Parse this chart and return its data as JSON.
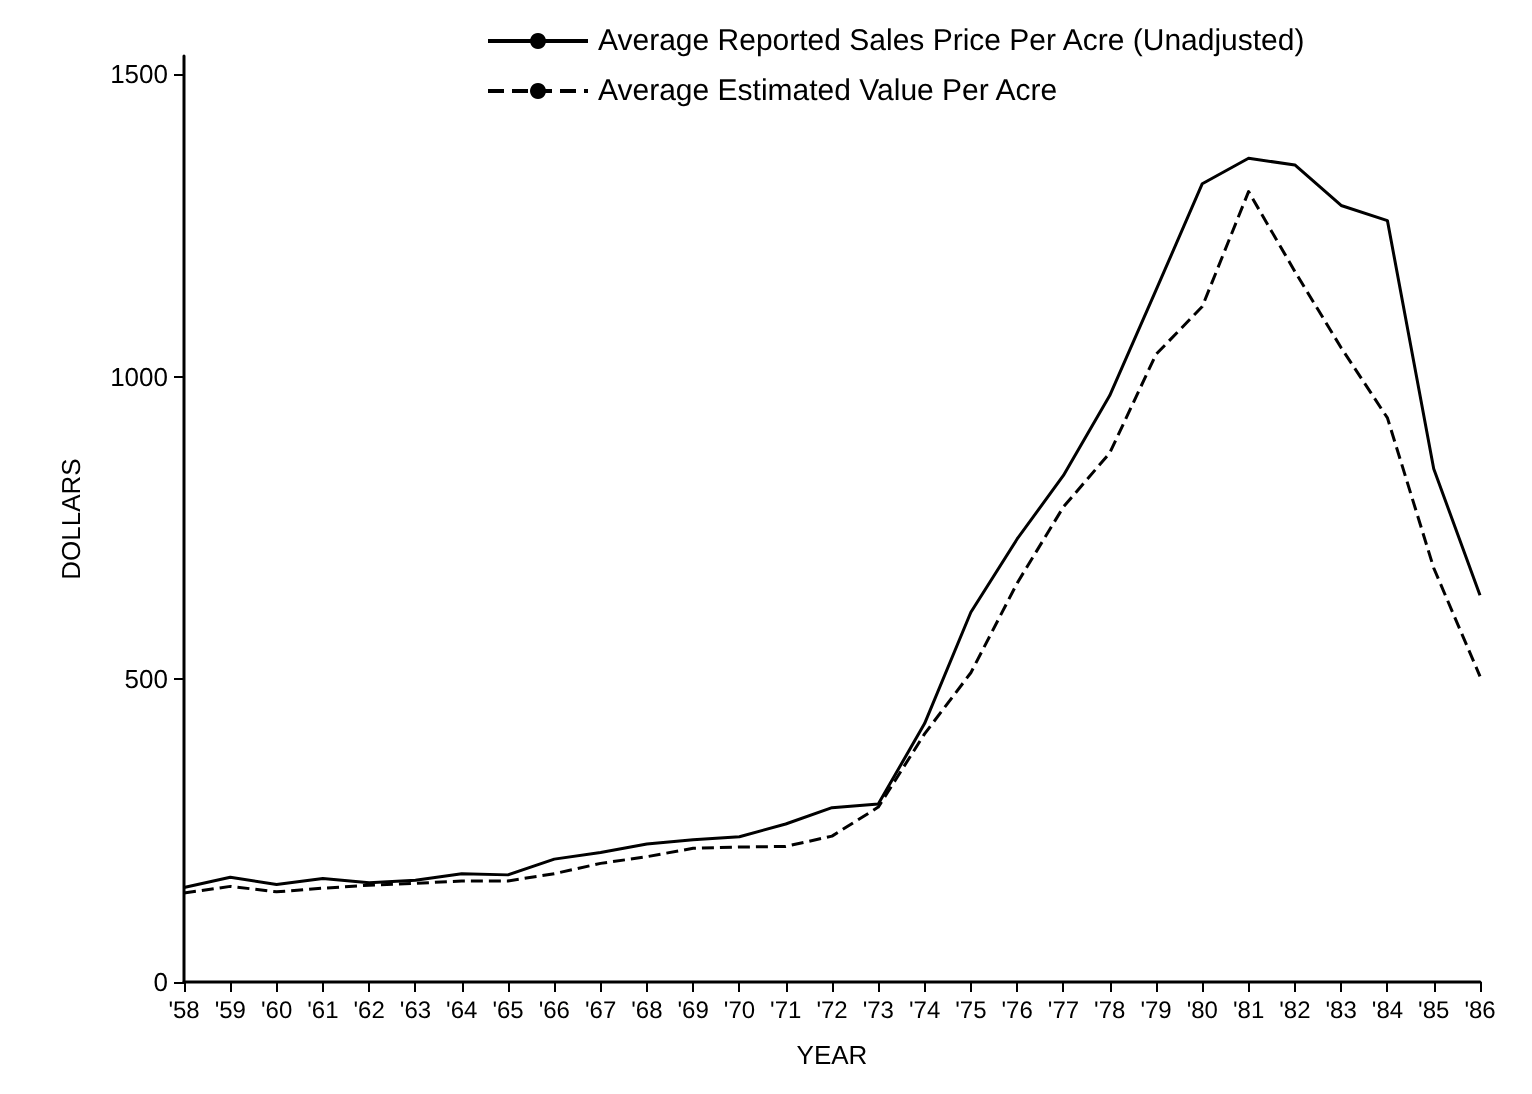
{
  "chart_data": {
    "type": "line",
    "xlabel": "YEAR",
    "ylabel": "DOLLARS",
    "categories": [
      "'58",
      "'59",
      "'60",
      "'61",
      "'62",
      "'63",
      "'64",
      "'65",
      "'66",
      "'67",
      "'68",
      "'69",
      "'70",
      "'71",
      "'72",
      "'73",
      "'74",
      "'75",
      "'76",
      "'77",
      "'78",
      "'79",
      "'80",
      "'81",
      "'82",
      "'83",
      "'84",
      "'85",
      "'86"
    ],
    "series": [
      {
        "name": "Average Reported Sales Price Per Acre (Unadjusted)",
        "color": "#000000",
        "line_style": "solid",
        "values": [
          156,
          173,
          161,
          171,
          164,
          168,
          179,
          177,
          203,
          214,
          228,
          235,
          240,
          261,
          288,
          294,
          427,
          611,
          732,
          837,
          969,
          1143,
          1319,
          1361,
          1350,
          1283,
          1258,
          848,
          639
        ]
      },
      {
        "name": "Average Estimated Value Per Acre",
        "color": "#000000",
        "line_style": "dashed",
        "values": [
          147,
          158,
          149,
          155,
          160,
          163,
          167,
          167,
          179,
          196,
          207,
          221,
          223,
          224,
          241,
          289,
          410,
          511,
          659,
          785,
          874,
          1037,
          1116,
          1306,
          1174,
          1048,
          932,
          684,
          505
        ]
      }
    ],
    "ylim": [
      0,
      1530
    ],
    "yticks": [
      0,
      500,
      1000,
      1500
    ],
    "grid": false,
    "legend": "top",
    "marker": "none"
  }
}
